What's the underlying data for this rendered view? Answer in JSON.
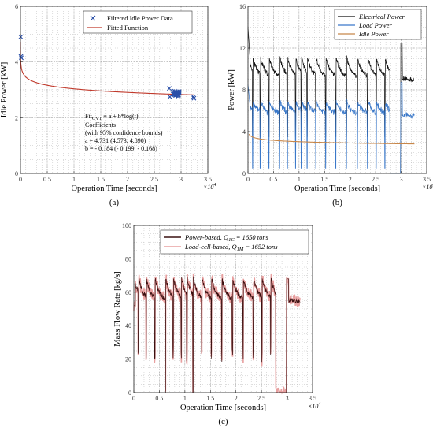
{
  "chart_data": [
    {
      "id": "a",
      "type": "scatter",
      "caption": "(a)",
      "xlabel": "Operation Time [seconds]",
      "ylabel": "Idle Power [kW]",
      "x_exponent_label": "×10",
      "x_exponent_power": "4",
      "xlim": [
        0,
        35000
      ],
      "ylim": [
        0,
        6
      ],
      "xticks": [
        0,
        5000,
        10000,
        15000,
        20000,
        25000,
        30000,
        35000
      ],
      "xtick_labels": [
        "0",
        "0.5",
        "1",
        "1.5",
        "2",
        "2.5",
        "3",
        "3.5"
      ],
      "yticks": [
        0,
        2,
        4,
        6
      ],
      "ytick_labels": [
        "0",
        "2",
        "4",
        "6"
      ],
      "grid": true,
      "legend_position": "top-right",
      "series": [
        {
          "name": "Filtered Idle Power Data",
          "marker": "x",
          "color": "#2a4fa8",
          "points": [
            [
              50,
              4.9
            ],
            [
              80,
              4.2
            ],
            [
              150,
              4.15
            ],
            [
              27800,
              3.05
            ],
            [
              27900,
              2.75
            ],
            [
              28500,
              2.85
            ],
            [
              28800,
              2.95
            ],
            [
              29000,
              2.8
            ],
            [
              29100,
              2.9
            ],
            [
              29300,
              2.85
            ],
            [
              29500,
              2.8
            ],
            [
              32300,
              2.75
            ],
            [
              32400,
              2.7
            ]
          ]
        },
        {
          "name": "Fitted Function",
          "line": true,
          "color": "#c0392b",
          "equation": {
            "a": 4.731,
            "b": -0.184,
            "form": "a + b*log(t)"
          }
        }
      ],
      "annotation_lines": [
        "Coefficients",
        "(with 95% confidence bounds)",
        "a = 4.731 (4.573, 4.890)",
        "b = - 0.184 (- 0.199, - 0.168)"
      ],
      "annotation_fit_prefix": "Fit",
      "annotation_fit_sub": "CV1",
      "annotation_fit_suffix": " = a + b*log(t)"
    },
    {
      "id": "b",
      "type": "line",
      "caption": "(b)",
      "xlabel": "Operation Time [seconds]",
      "ylabel": "Power [kW]",
      "x_exponent_label": "×10",
      "x_exponent_power": "4",
      "xlim": [
        0,
        35000
      ],
      "ylim": [
        0,
        16
      ],
      "xticks": [
        0,
        5000,
        10000,
        15000,
        20000,
        25000,
        30000,
        35000
      ],
      "xtick_labels": [
        "0",
        "0.5",
        "1",
        "1.5",
        "2",
        "2.5",
        "3",
        "3.5"
      ],
      "yticks": [
        0,
        4,
        8,
        12,
        16
      ],
      "ytick_labels": [
        "0",
        "4",
        "8",
        "12",
        "16"
      ],
      "grid": true,
      "legend_position": "top-right",
      "series": [
        {
          "name": "Electrical Power",
          "color": "#111111"
        },
        {
          "name": "Load Power",
          "color": "#3a78c9"
        },
        {
          "name": "Idle Power",
          "color": "#c8874a"
        }
      ]
    },
    {
      "id": "c",
      "type": "line",
      "caption": "(c)",
      "xlabel": "Operation Time [seconds]",
      "ylabel": "Mass Flow Rate [kg/s]",
      "x_exponent_label": "×10",
      "x_exponent_power": "4",
      "xlim": [
        0,
        35000
      ],
      "ylim": [
        0,
        100
      ],
      "xticks": [
        0,
        5000,
        10000,
        15000,
        20000,
        25000,
        30000,
        35000
      ],
      "xtick_labels": [
        "0",
        "0.5",
        "1",
        "1.5",
        "2",
        "2.5",
        "3",
        "3.5"
      ],
      "yticks": [
        0,
        20,
        40,
        60,
        80,
        100
      ],
      "ytick_labels": [
        "0",
        "20",
        "40",
        "60",
        "80",
        "100"
      ],
      "grid": true,
      "legend_position": "top-right",
      "series": [
        {
          "name_prefix": "Power-based, ",
          "name_q": "Q",
          "name_sub": "1C",
          "name_suffix": " = 1650 tons",
          "color": "#3a1010"
        },
        {
          "name_prefix": "Load-cell-based, ",
          "name_q": "Q",
          "name_sub": "1M",
          "name_suffix": " = 1652 tons",
          "color": "#e8a0a0"
        }
      ]
    }
  ]
}
